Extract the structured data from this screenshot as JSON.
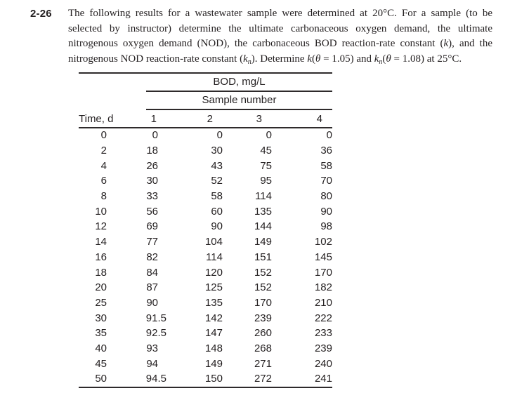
{
  "problem": {
    "number": "2-26",
    "lines": [
      [
        [
          "n",
          "The following results for a wastewater sample were determined at 20°C. For a sample (to be"
        ]
      ],
      [
        [
          "n",
          "selected by instructor) determine the ultimate carbonaceous oxygen demand, the ultimate"
        ]
      ],
      [
        [
          "n",
          "nitrogenous oxygen demand (NOD), the carbonaceous BOD reaction-rate constant ("
        ],
        [
          "i",
          "k"
        ],
        [
          "n",
          "), and the"
        ]
      ],
      [
        [
          "n",
          "nitrogenous NOD reaction-rate constant ("
        ],
        [
          "i",
          "k"
        ],
        [
          "s",
          "n"
        ],
        [
          "n",
          "). Determine "
        ],
        [
          "i",
          "k"
        ],
        [
          "n",
          "("
        ],
        [
          "i",
          "θ"
        ],
        [
          "n",
          " = 1.05) and "
        ],
        [
          "i",
          "k"
        ],
        [
          "s",
          "n"
        ],
        [
          "n",
          "("
        ],
        [
          "i",
          "θ"
        ],
        [
          "n",
          " = 1.08) at 25°C."
        ]
      ]
    ]
  },
  "table": {
    "title": "BOD, mg/L",
    "subtitle": "Sample number",
    "col_headers": [
      "Time, d",
      "1",
      "2",
      "3",
      "4"
    ],
    "rows": [
      [
        "0",
        "0",
        "0",
        "0",
        "0"
      ],
      [
        "2",
        "18",
        "30",
        "45",
        "36"
      ],
      [
        "4",
        "26",
        "43",
        "75",
        "58"
      ],
      [
        "6",
        "30",
        "52",
        "95",
        "70"
      ],
      [
        "8",
        "33",
        "58",
        "114",
        "80"
      ],
      [
        "10",
        "56",
        "60",
        "135",
        "90"
      ],
      [
        "12",
        "69",
        "90",
        "144",
        "98"
      ],
      [
        "14",
        "77",
        "104",
        "149",
        "102"
      ],
      [
        "16",
        "82",
        "114",
        "151",
        "145"
      ],
      [
        "18",
        "84",
        "120",
        "152",
        "170"
      ],
      [
        "20",
        "87",
        "125",
        "152",
        "182"
      ],
      [
        "25",
        "90",
        "135",
        "170",
        "210"
      ],
      [
        "30",
        "91.5",
        "142",
        "239",
        "222"
      ],
      [
        "35",
        "92.5",
        "147",
        "260",
        "233"
      ],
      [
        "40",
        "93",
        "148",
        "268",
        "239"
      ],
      [
        "45",
        "94",
        "149",
        "271",
        "240"
      ],
      [
        "50",
        "94.5",
        "150",
        "272",
        "241"
      ]
    ]
  },
  "colors": {
    "text": "#231f20",
    "rule": "#2e2a2b",
    "background": "#ffffff"
  }
}
